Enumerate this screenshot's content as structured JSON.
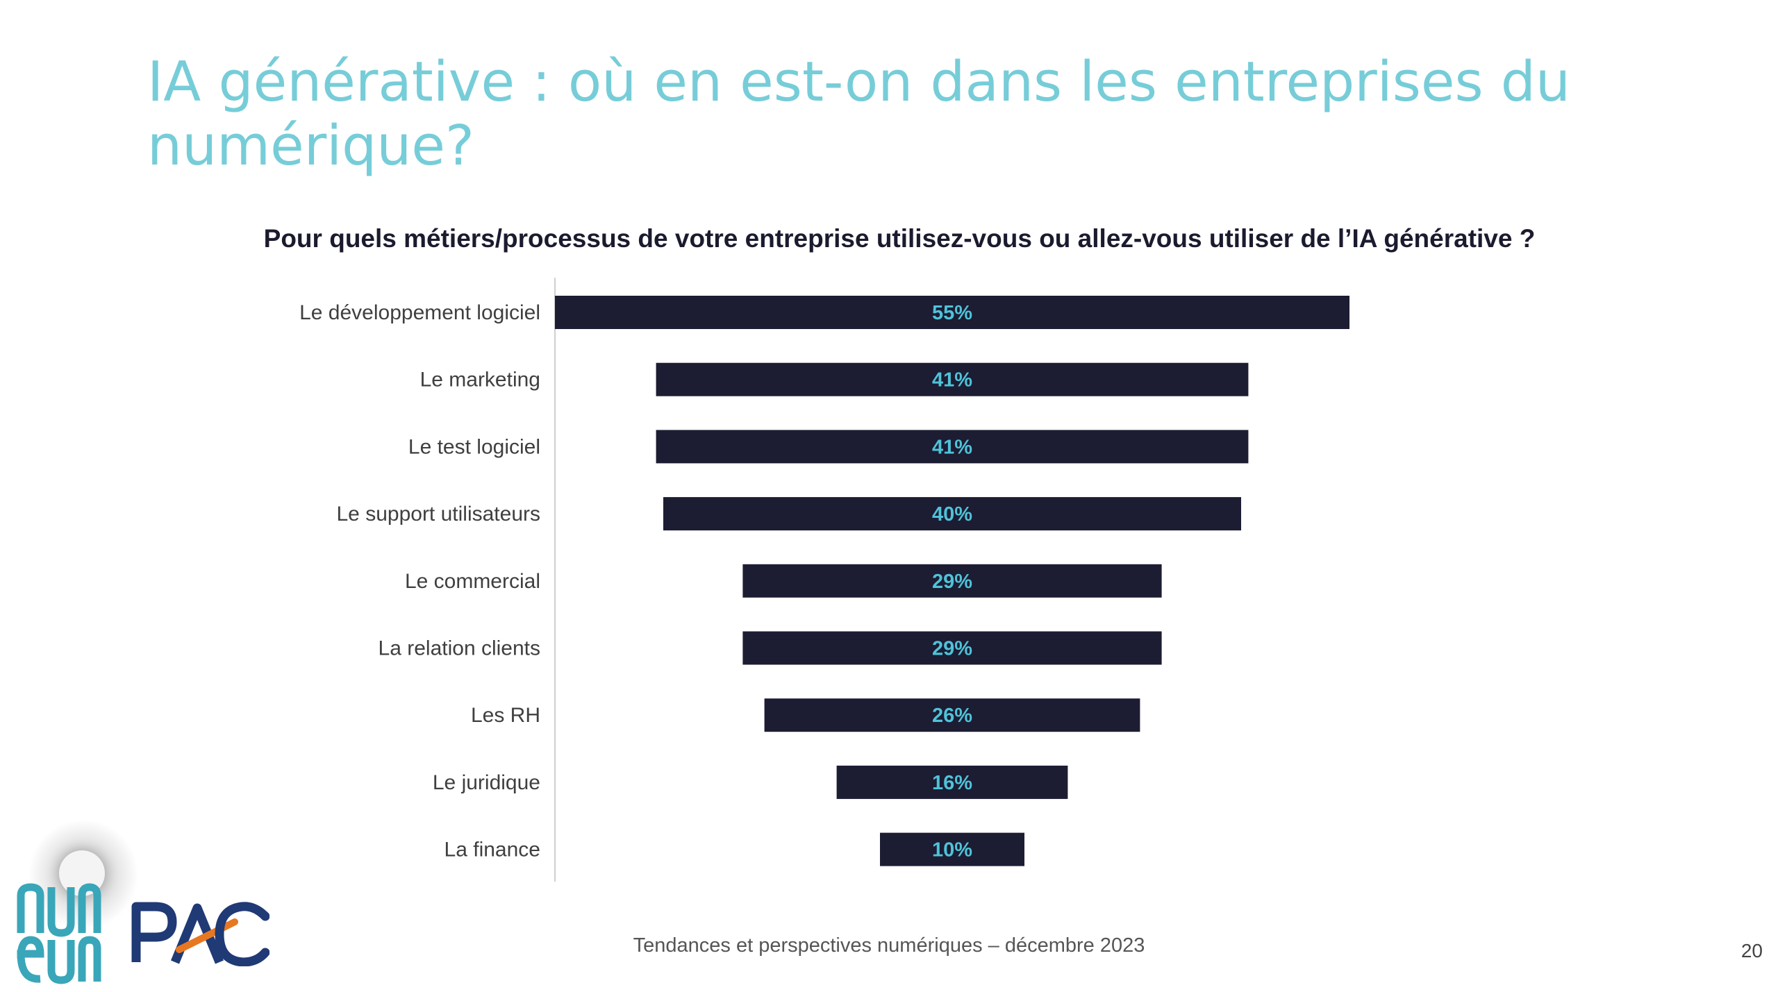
{
  "slide": {
    "title": "IA générative : où en est-on dans les entreprises du numérique?",
    "footer": "Tendances et perspectives numériques – décembre 2023",
    "page_number": "20"
  },
  "logos": {
    "numeum": "numeum",
    "pac": "PAC"
  },
  "colors": {
    "title": "#76CDD8",
    "bar": "#1C1C33",
    "value_label": "#4FC3D8",
    "axis": "#cfcfcf",
    "pac_blue": "#1F3A75",
    "pac_orange": "#E87722",
    "numeum_teal": "#3AA6B9"
  },
  "chart_data": {
    "type": "bar",
    "orientation": "horizontal",
    "layout": "centered",
    "title": "Pour quels métiers/processus de votre entreprise utilisez-vous ou allez-vous utiliser de l’IA générative ?",
    "categories": [
      "Le développement logiciel",
      "Le marketing",
      "Le test logiciel",
      "Le support utilisateurs",
      "Le commercial",
      "La relation clients",
      "Les RH",
      "Le juridique",
      "La finance"
    ],
    "values": [
      55,
      41,
      41,
      40,
      29,
      29,
      26,
      16,
      10
    ],
    "value_labels": [
      "55%",
      "41%",
      "41%",
      "40%",
      "29%",
      "29%",
      "26%",
      "16%",
      "10%"
    ],
    "unit": "%",
    "grid": false,
    "legend": "none"
  }
}
